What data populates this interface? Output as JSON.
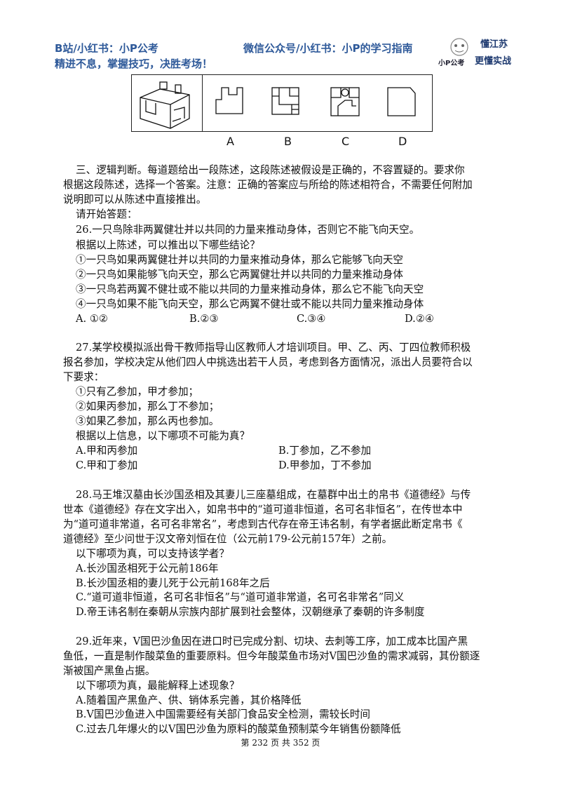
{
  "header": {
    "left_line1": "B站/小红书：小P公考",
    "left_line2": "精进不息，掌握技巧，决胜考场！",
    "center": "微信公众号/小红书：小P的学习指南",
    "logo_text": "小P公考",
    "slogan_line1": "懂江苏",
    "slogan_line2": "更懂实战"
  },
  "figure": {
    "option_labels": [
      "A",
      "B",
      "C",
      "D"
    ]
  },
  "section": {
    "intro_lines": [
      "三、逻辑判断。每道题给出一段陈述，这段陈述被假设是正确的，不容置疑的。要求你",
      "根据这段陈述，选择一个答案。注意：正确的答案应与所给的陈述相符合，不需要任何附加",
      "说明即可以从陈述中直接推出。"
    ],
    "start": "请开始答题："
  },
  "q26": {
    "lines": [
      "26.一只鸟除非两翼健壮并以共同的力量来推动身体，否则它不能飞向天空。",
      "根据以上陈述，可以推出以下哪些结论？",
      "①一只鸟如果两翼健壮并以共同的力量来推动身体，那么它能够飞向天空",
      "②一只鸟如果能够飞向天空，那么它两翼健壮并以共同的力量来推动身体",
      "③一只鸟若两翼不健壮或不能以共同的力量来推动身体，那么它不能飞向天空",
      "④一只鸟如果不能飞向天空，那么它两翼不健壮或不能以共同力量来推动身体"
    ],
    "options": [
      "A. ①②",
      "B.②③",
      "C.③④",
      "D.②④"
    ]
  },
  "q27": {
    "lines": [
      "27.某学校模拟派出骨干教师指导山区教师人才培训项目。甲、乙、丙、丁四位教师积极",
      "报名参加，学校决定从他们四人中挑选出若干人员，考虑到各方面情况，派出人员要符合以",
      "下要求：",
      "①只有乙参加，甲才参加；",
      "②如果丙参加，那么丁不参加；",
      "③如果乙参加，那么丙也参加。",
      "根据以上信息，以下哪项不可能为真？"
    ],
    "options": [
      "A.甲和丙参加",
      "B.丁参加，乙不参加",
      "C.甲和丁参加",
      "D.甲参加，丁不参加"
    ]
  },
  "q28": {
    "lines": [
      "28.马王堆汉墓由长沙国丞相及其妻儿三座墓组成，在墓群中出土的帛书《道德经》与传",
      "世本《道德经》存在文字出入，如帛书中的“道可道非恒道，名可名非恒名”，在传世本中",
      "为“道可道非常道，名可名非常名”，考虑到古代存在帝王讳名制，有学者据此断定帛书《",
      "道德经》至少问世于汉文帝刘恒在位（公元前179-公元前157年）之前。",
      "以下哪项为真，可以支持该学者？",
      "A.长沙国丞相死于公元前186年",
      "B.长沙国丞相的妻儿死于公元前168年之后",
      "C.“道可道非恒道，名可名非恒名”与“道可道非常道，名可名非常名”同义",
      "D.帝王讳名制在秦朝从宗族内部扩展到社会整体，汉朝继承了秦朝的许多制度"
    ]
  },
  "q29": {
    "lines": [
      "29.近年来，V国巴沙鱼因在进口时已完成分割、切块、去刺等工序，加工成本比国产黑",
      "鱼低，一直是制作酸菜鱼的重要原料。但今年酸菜鱼市场对V国巴沙鱼的需求减弱，其份额逐",
      "渐被国产黑鱼占据。",
      "以下哪项为真，最能解释上述现象？",
      "A.随着国产黑鱼产、供、销体系完善，其价格降低",
      "B.V国巴沙鱼进入中国需要经有关部门食品安全检测，需较长时间",
      "C.过去几年爆火的以V国巴沙鱼为原料的酸菜鱼预制菜今年销售份额降低"
    ]
  },
  "footer": {
    "page": "第 232 页 共 352 页"
  }
}
